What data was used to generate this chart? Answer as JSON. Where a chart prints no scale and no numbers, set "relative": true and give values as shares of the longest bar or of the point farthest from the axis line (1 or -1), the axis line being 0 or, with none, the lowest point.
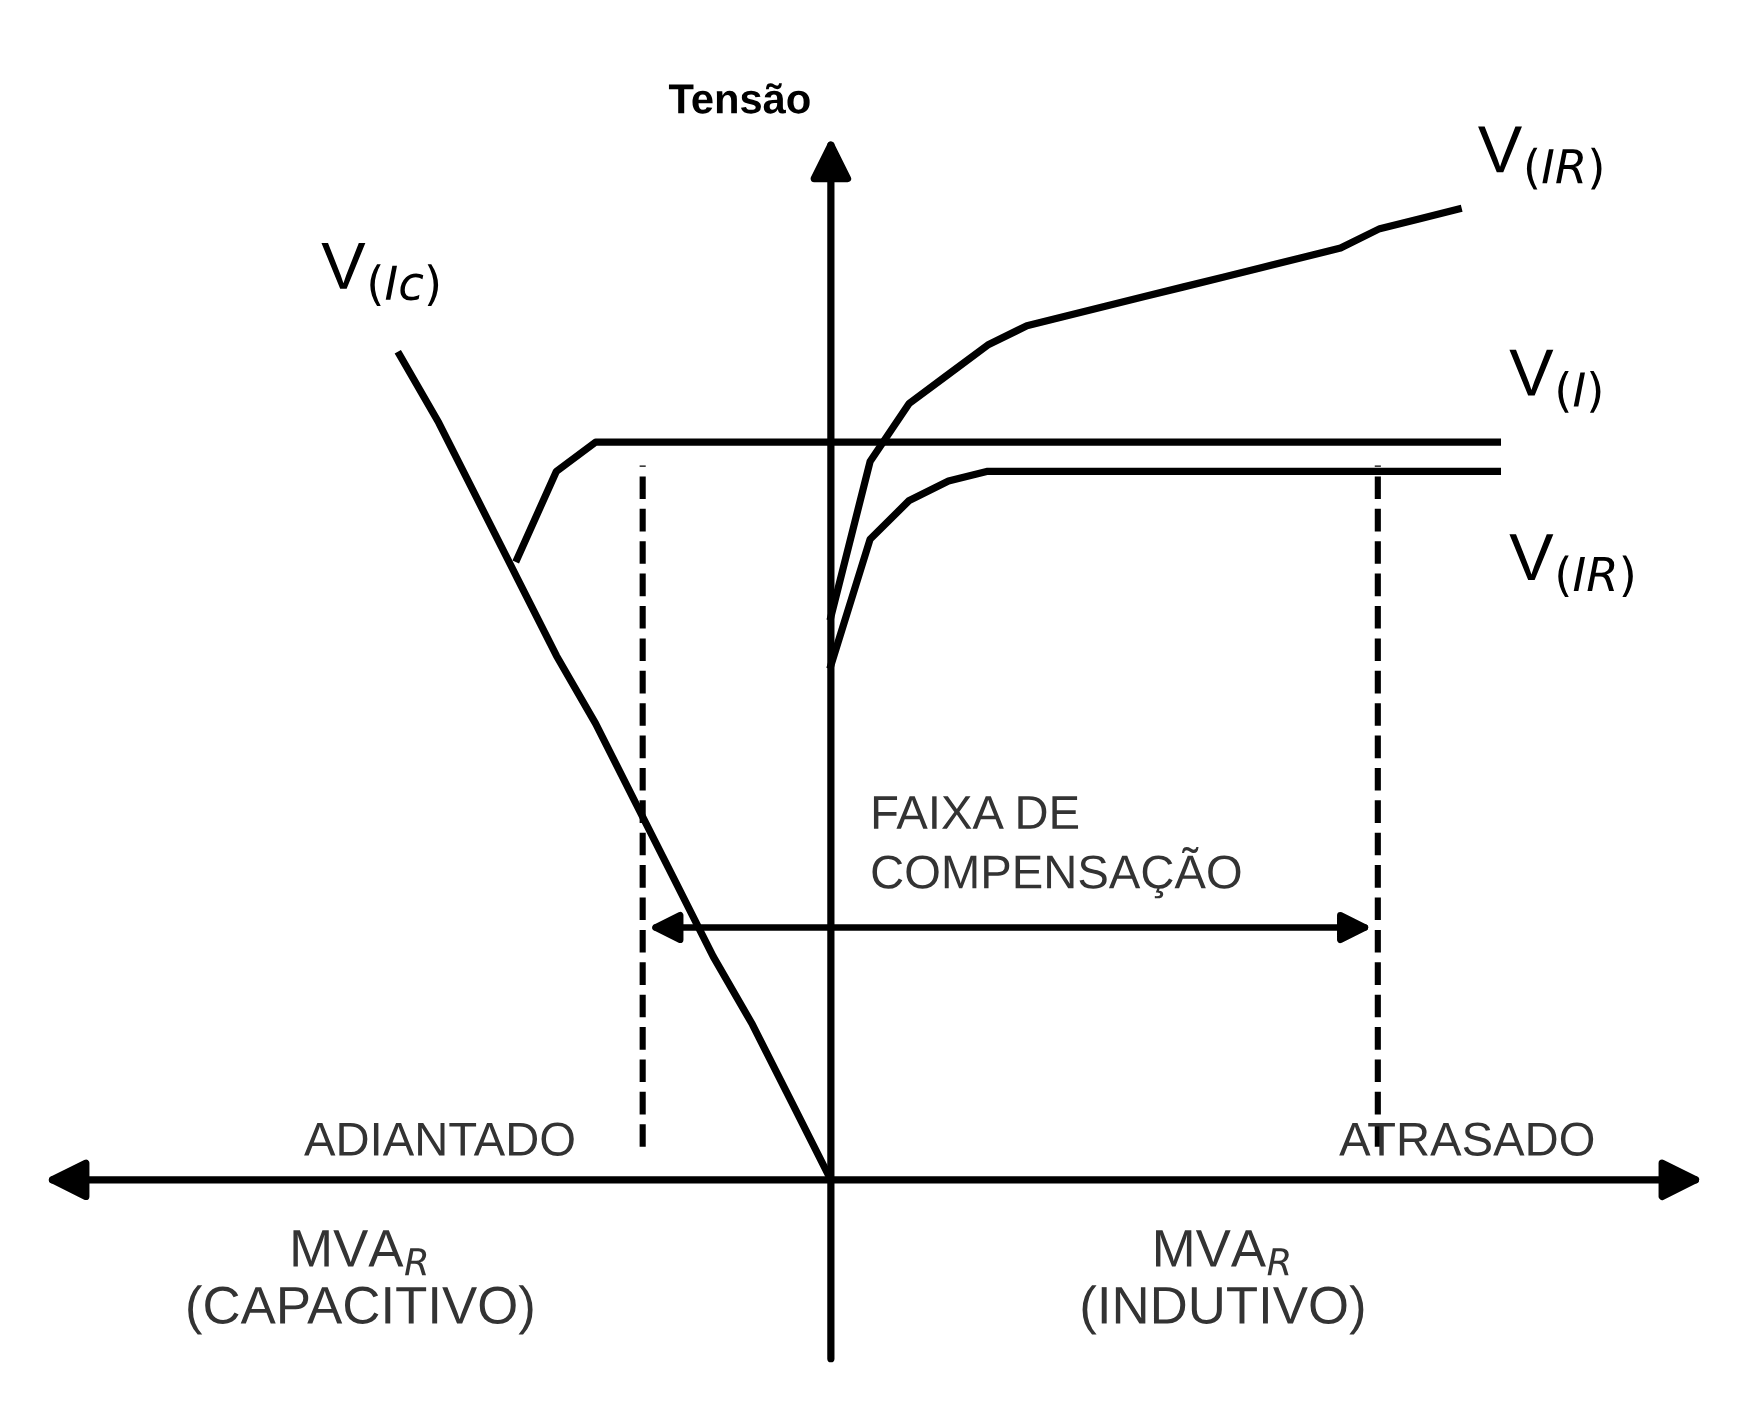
{
  "chart_data": {
    "type": "line",
    "relative": true,
    "ylabel": "Tensão",
    "tick_labels": false,
    "legend": false,
    "marker": "none",
    "line_style": "solid",
    "categories": [
      null,
      null,
      null,
      null,
      null,
      null,
      null,
      null,
      null,
      null,
      null,
      null,
      null,
      null,
      null,
      null,
      null,
      null,
      null,
      null,
      null,
      null,
      null,
      null,
      null,
      null,
      null,
      null,
      null,
      null,
      null,
      null,
      null,
      null,
      null,
      null,
      null,
      null,
      null,
      null,
      null,
      null,
      null
    ],
    "series": [
      {
        "name": "V$_{(Ic)}$",
        "color": "#000000",
        "values": [
          null,
          null,
          null,
          null,
          null,
          null,
          null,
          null,
          null,
          0.85,
          0.78,
          0.7,
          0.62,
          0.54,
          0.47,
          0.39,
          0.31,
          0.23,
          0.16,
          0.08,
          0.0,
          null,
          null,
          null,
          null,
          null,
          null,
          null,
          null,
          null,
          null,
          null,
          null,
          null,
          null,
          null,
          null,
          null,
          null,
          null,
          null,
          null,
          null
        ]
      },
      {
        "name": "V$_{(I)}$",
        "color": "#000000",
        "values": [
          null,
          null,
          null,
          null,
          null,
          null,
          null,
          null,
          null,
          null,
          null,
          null,
          0.64,
          0.73,
          0.76,
          0.76,
          0.76,
          0.76,
          0.76,
          0.76,
          0.76,
          0.76,
          0.76,
          0.76,
          0.76,
          0.76,
          0.76,
          0.76,
          0.76,
          0.76,
          0.76,
          0.76,
          0.76,
          0.76,
          0.76,
          0.76,
          0.76,
          0.76,
          null,
          null,
          null,
          null,
          null
        ]
      },
      {
        "name": "V$_{(IR)}$",
        "color": "#000000",
        "values": [
          null,
          null,
          null,
          null,
          null,
          null,
          null,
          null,
          null,
          null,
          null,
          null,
          null,
          null,
          null,
          null,
          null,
          null,
          null,
          null,
          0.58,
          0.74,
          0.8,
          0.83,
          0.86,
          0.88,
          0.89,
          0.9,
          0.91,
          0.92,
          0.93,
          0.94,
          0.95,
          0.96,
          0.98,
          0.99,
          1.0,
          null,
          null,
          null,
          null,
          null,
          null
        ]
      },
      {
        "name": "V$_{(IR)}$",
        "color": "#000000",
        "values": [
          null,
          null,
          null,
          null,
          null,
          null,
          null,
          null,
          null,
          null,
          null,
          null,
          null,
          null,
          null,
          null,
          null,
          null,
          null,
          null,
          0.53,
          0.66,
          0.7,
          0.72,
          0.73,
          0.73,
          0.73,
          0.73,
          0.73,
          0.73,
          0.73,
          0.73,
          0.73,
          0.73,
          0.73,
          0.73,
          0.73,
          0.73,
          null,
          null,
          null,
          null,
          null
        ]
      }
    ],
    "annotations": [
      "FAIXA DE\nCOMPENSAÇÃO",
      "ADIANTADO",
      "ATRASADO",
      "MVA$_{R}$\n(CAPACITIVO)",
      "MVA$_{R}$\n(INDUTIVO)"
    ]
  }
}
